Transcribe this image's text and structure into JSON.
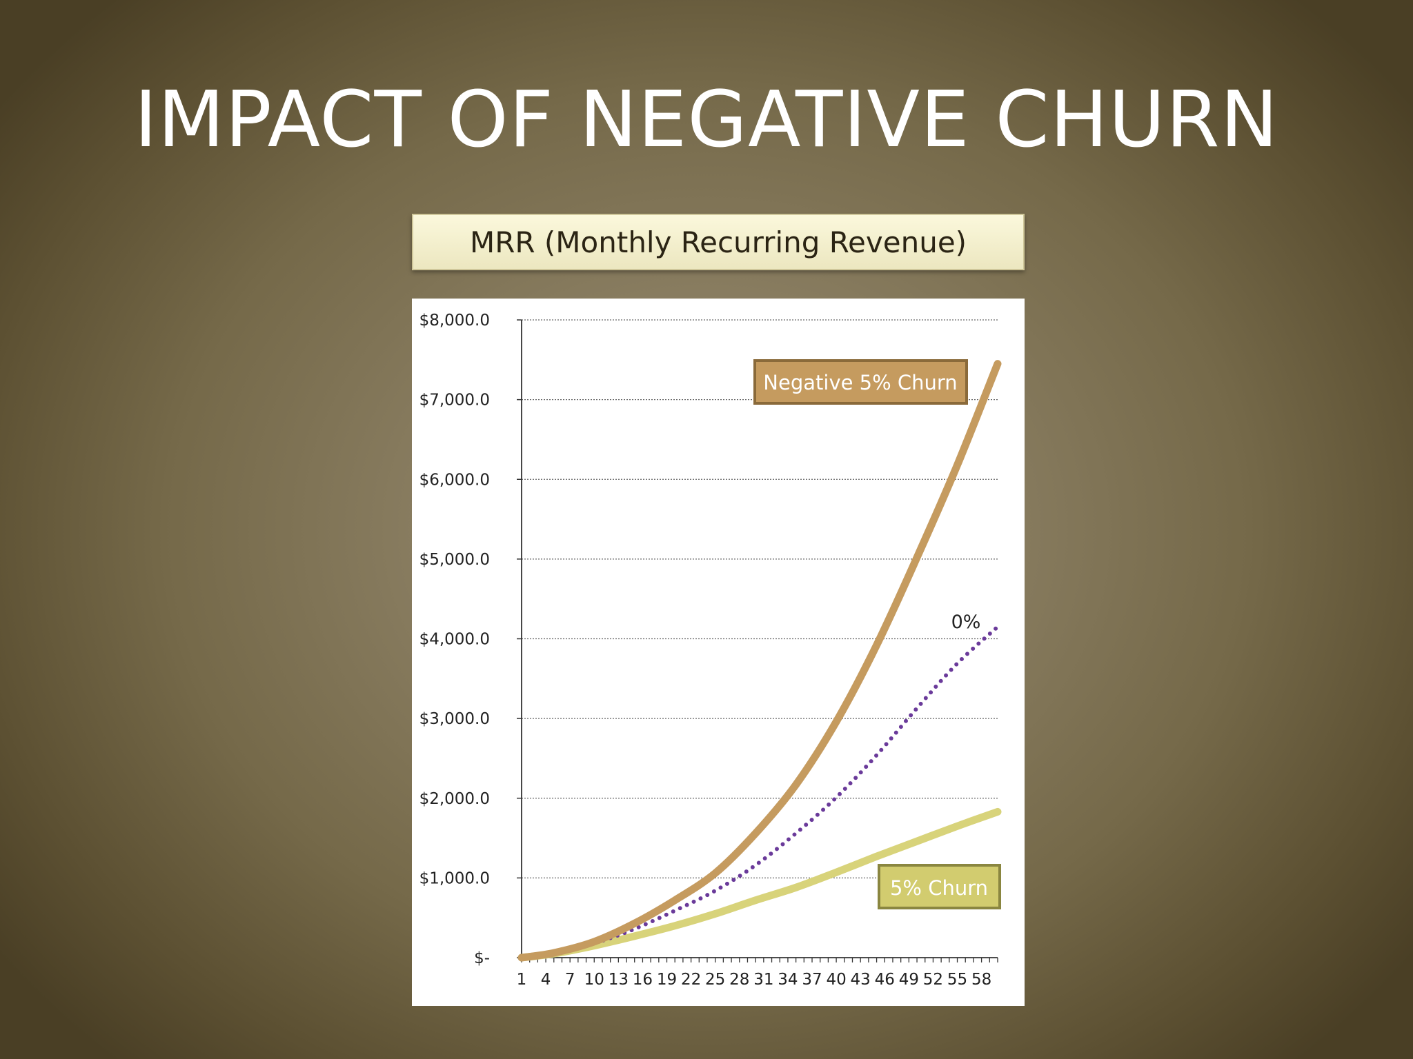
{
  "slide": {
    "title": "IMPACT OF NEGATIVE CHURN"
  },
  "chart_data": {
    "type": "line",
    "title": "MRR (Monthly Recurring Revenue)",
    "xlabel": "",
    "ylabel": "",
    "x_tick_labels": [
      "1",
      "4",
      "7",
      "10",
      "13",
      "16",
      "19",
      "22",
      "25",
      "28",
      "31",
      "34",
      "37",
      "40",
      "43",
      "46",
      "49",
      "52",
      "55",
      "58"
    ],
    "x_range": [
      1,
      60
    ],
    "ylim": [
      0,
      8000
    ],
    "y_tick_values": [
      0,
      1000,
      2000,
      3000,
      4000,
      5000,
      6000,
      7000,
      8000
    ],
    "y_tick_labels": [
      "$-",
      "$1,000.0",
      "$2,000.0",
      "$3,000.0",
      "$4,000.0",
      "$5,000.0",
      "$6,000.0",
      "$7,000.0",
      "$8,000.0"
    ],
    "grid": true,
    "series": [
      {
        "name": "Negative 5% Churn",
        "color": "#c59b5f",
        "style": "solid",
        "label_style": "box",
        "x": [
          1,
          5,
          10,
          15,
          20,
          25,
          30,
          35,
          40,
          45,
          50,
          55,
          60
        ],
        "values": [
          0,
          60,
          200,
          430,
          720,
          1060,
          1560,
          2170,
          2960,
          3920,
          5020,
          6180,
          7450
        ]
      },
      {
        "name": "0%",
        "color": "#6a3a9a",
        "style": "dotted",
        "label_style": "text",
        "x": [
          1,
          5,
          10,
          15,
          20,
          25,
          30,
          35,
          40,
          45,
          50,
          55,
          60
        ],
        "values": [
          0,
          60,
          180,
          360,
          590,
          840,
          1160,
          1560,
          2010,
          2540,
          3130,
          3690,
          4150
        ]
      },
      {
        "name": "5% Churn",
        "color": "#d8d37a",
        "style": "solid",
        "label_style": "box",
        "x": [
          1,
          5,
          10,
          15,
          20,
          25,
          30,
          35,
          40,
          45,
          50,
          55,
          60
        ],
        "values": [
          0,
          50,
          150,
          270,
          400,
          550,
          720,
          880,
          1070,
          1270,
          1460,
          1650,
          1830
        ]
      }
    ]
  }
}
